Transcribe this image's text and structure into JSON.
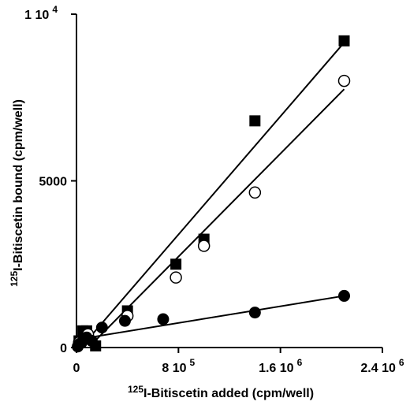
{
  "chart_data": {
    "type": "scatter",
    "xlabel_sup": "125",
    "xlabel": "I-Bitiscetin added (cpm/well)",
    "ylabel_sup": "125",
    "ylabel": "I-Bitiscetin bound (cpm/well)",
    "xlim": [
      0,
      2400000
    ],
    "ylim": [
      0,
      10000
    ],
    "x_ticks": [
      {
        "value": 0,
        "label": "0",
        "sup": ""
      },
      {
        "value": 800000,
        "label": "8 10",
        "sup": "5"
      },
      {
        "value": 1600000,
        "label": "1.6 10",
        "sup": "6"
      },
      {
        "value": 2400000,
        "label": "2.4 10",
        "sup": "6"
      }
    ],
    "y_ticks": [
      {
        "value": 0,
        "label": "0",
        "sup": ""
      },
      {
        "value": 5000,
        "label": "5000",
        "sup": ""
      },
      {
        "value": 10000,
        "label": "1 10",
        "sup": "4"
      }
    ],
    "grid": false,
    "series": [
      {
        "marker": "square-filled",
        "points": [
          [
            20000,
            200
          ],
          [
            50000,
            500
          ],
          [
            80000,
            500
          ],
          [
            150000,
            50
          ],
          [
            400000,
            1100
          ],
          [
            780000,
            2500
          ],
          [
            1000000,
            3250
          ],
          [
            1400000,
            6800
          ],
          [
            2100000,
            9200
          ]
        ],
        "fit": [
          [
            80000,
            200
          ],
          [
            2100000,
            9150
          ]
        ]
      },
      {
        "marker": "circle-open",
        "points": [
          [
            20000,
            150
          ],
          [
            90000,
            400
          ],
          [
            400000,
            950
          ],
          [
            780000,
            2100
          ],
          [
            1000000,
            3050
          ],
          [
            1400000,
            4650
          ],
          [
            2100000,
            8000
          ]
        ],
        "fit": [
          [
            120000,
            100
          ],
          [
            2100000,
            7750
          ]
        ]
      },
      {
        "marker": "circle-filled",
        "points": [
          [
            10000,
            30
          ],
          [
            20000,
            100
          ],
          [
            40000,
            150
          ],
          [
            80000,
            300
          ],
          [
            120000,
            200
          ],
          [
            200000,
            600
          ],
          [
            380000,
            800
          ],
          [
            680000,
            850
          ],
          [
            1400000,
            1050
          ],
          [
            2100000,
            1550
          ]
        ],
        "fit": [
          [
            20000,
            250
          ],
          [
            2100000,
            1550
          ]
        ]
      }
    ]
  }
}
